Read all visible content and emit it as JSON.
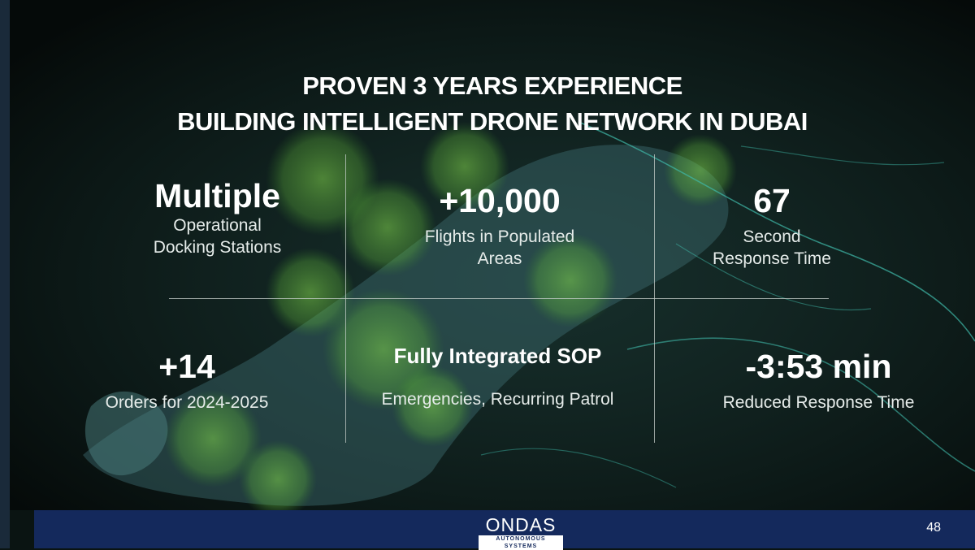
{
  "title": {
    "line1": "PROVEN 3 YEARS EXPERIENCE",
    "line2": "BUILDING INTELLIGENT DRONE NETWORK IN DUBAI"
  },
  "stats": [
    {
      "value": "Multiple",
      "caption_line1": "Operational",
      "caption_line2": "Docking Stations"
    },
    {
      "value": "+10,000",
      "caption_line1": "Flights in Populated",
      "caption_line2": "Areas"
    },
    {
      "value": "67",
      "caption_line1": "Second",
      "caption_line2": "Response Time"
    },
    {
      "value": "+14",
      "caption_line1": "Orders for 2024-2025"
    },
    {
      "value": "Fully Integrated SOP",
      "caption_line1": "Emergencies, Recurring Patrol"
    },
    {
      "value": "-3:53 min",
      "caption_line1": "Reduced Response Time"
    }
  ],
  "footer": {
    "logo_main": "ONDAS",
    "logo_sub": "AUTONOMOUS SYSTEMS",
    "page_number": "48",
    "color": "#14295c"
  },
  "colors": {
    "background": "#0a1412",
    "map_green": "#7fd34a",
    "route_cyan": "#3fb8a8"
  }
}
